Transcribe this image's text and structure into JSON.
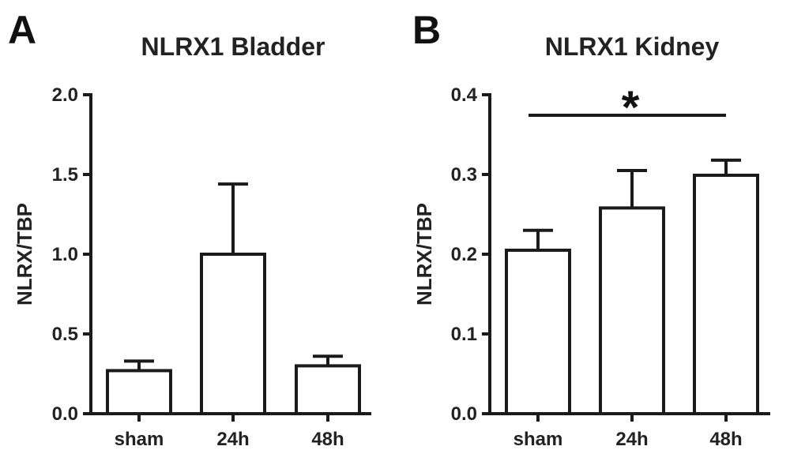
{
  "chart_data": [
    {
      "panel": "A",
      "type": "bar",
      "title": "NLRX1 Bladder",
      "ylabel": "NLRX/TBP",
      "xlabel": "",
      "categories": [
        "sham",
        "24h",
        "48h"
      ],
      "values": [
        0.27,
        1.0,
        0.3
      ],
      "errors": [
        0.06,
        0.44,
        0.06
      ],
      "ylim": [
        0,
        2.0
      ],
      "yticks": [
        "0.0",
        "0.5",
        "1.0",
        "1.5",
        "2.0"
      ],
      "grid": false,
      "annotations": []
    },
    {
      "panel": "B",
      "type": "bar",
      "title": "NLRX1 Kidney",
      "ylabel": "NLRX/TBP",
      "xlabel": "",
      "categories": [
        "sham",
        "24h",
        "48h"
      ],
      "values": [
        0.205,
        0.258,
        0.299
      ],
      "errors": [
        0.025,
        0.047,
        0.019
      ],
      "ylim": [
        0,
        0.4
      ],
      "yticks": [
        "0.0",
        "0.1",
        "0.2",
        "0.3",
        "0.4"
      ],
      "grid": false,
      "annotations": [
        {
          "text": "*",
          "from": "sham",
          "to": "48h"
        }
      ]
    }
  ]
}
